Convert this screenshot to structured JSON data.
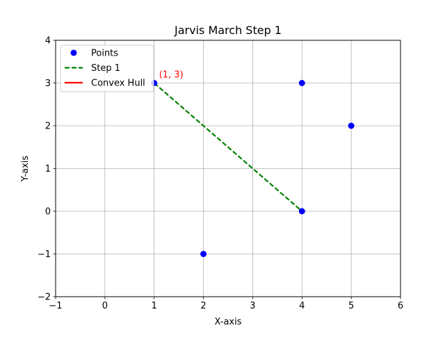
{
  "chart_data": {
    "type": "scatter",
    "title": "Jarvis March Step 1",
    "xlabel": "X-axis",
    "ylabel": "Y-axis",
    "xlim": [
      -1,
      6
    ],
    "ylim": [
      -2,
      4
    ],
    "xticks": [
      -1,
      0,
      1,
      2,
      3,
      4,
      5,
      6
    ],
    "yticks": [
      -2,
      -1,
      0,
      1,
      2,
      3,
      4
    ],
    "xtick_labels": [
      "−1",
      "0",
      "1",
      "2",
      "3",
      "4",
      "5",
      "6"
    ],
    "ytick_labels": [
      "−2",
      "−1",
      "0",
      "1",
      "2",
      "3",
      "4"
    ],
    "grid": true,
    "legend_position": "top-left",
    "series": [
      {
        "name": "Points",
        "kind": "markers",
        "color": "#0000ff",
        "points": [
          [
            1,
            3
          ],
          [
            4,
            3
          ],
          [
            5,
            2
          ],
          [
            4,
            0
          ],
          [
            2,
            -1
          ]
        ]
      },
      {
        "name": "Step 1",
        "kind": "dashed-line",
        "color": "#008000",
        "points": [
          [
            1,
            3
          ],
          [
            4,
            0
          ]
        ]
      },
      {
        "name": "Convex Hull",
        "kind": "line",
        "color": "#ff0000",
        "points": []
      }
    ],
    "annotations": [
      {
        "text": "(1, 3)",
        "x": 1,
        "y": 3,
        "color": "#ff0000"
      }
    ]
  }
}
